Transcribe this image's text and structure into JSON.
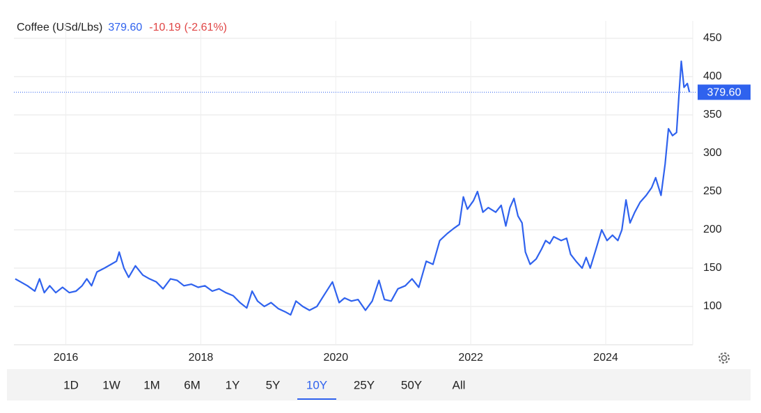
{
  "chart_data": {
    "type": "line",
    "title": "Coffee (USd/Lbs)",
    "last": {
      "value": 379.6,
      "label": "379.60"
    },
    "change": "-10.19",
    "change_pct": "(-2.61%)",
    "color": "#2f62ee",
    "grid": true,
    "xlim": [
      2015.23,
      2025.29
    ],
    "xticks": [
      2016,
      2018,
      2020,
      2022,
      2024
    ],
    "ylim": [
      50,
      463.6
    ],
    "yticks": [
      100,
      150,
      200,
      250,
      300,
      350,
      400,
      450
    ],
    "x": [
      2015.25,
      2015.33,
      2015.43,
      2015.54,
      2015.61,
      2015.68,
      2015.76,
      2015.85,
      2015.95,
      2016.05,
      2016.15,
      2016.24,
      2016.31,
      2016.38,
      2016.46,
      2016.57,
      2016.67,
      2016.75,
      2016.79,
      2016.86,
      2016.93,
      2017.03,
      2017.14,
      2017.24,
      2017.34,
      2017.44,
      2017.55,
      2017.65,
      2017.75,
      2017.86,
      2017.96,
      2018.06,
      2018.17,
      2018.27,
      2018.37,
      2018.48,
      2018.58,
      2018.68,
      2018.76,
      2018.84,
      2018.94,
      2019.04,
      2019.15,
      2019.25,
      2019.33,
      2019.41,
      2019.51,
      2019.61,
      2019.72,
      2019.82,
      2019.95,
      2020.05,
      2020.13,
      2020.23,
      2020.33,
      2020.44,
      2020.54,
      2020.64,
      2020.72,
      2020.82,
      2020.92,
      2021.03,
      2021.13,
      2021.23,
      2021.34,
      2021.44,
      2021.54,
      2021.65,
      2021.75,
      2021.83,
      2021.89,
      2021.95,
      2022.04,
      2022.1,
      2022.18,
      2022.26,
      2022.37,
      2022.45,
      2022.52,
      2022.58,
      2022.64,
      2022.7,
      2022.76,
      2022.81,
      2022.88,
      2022.97,
      2023.05,
      2023.11,
      2023.17,
      2023.23,
      2023.34,
      2023.42,
      2023.48,
      2023.56,
      2023.65,
      2023.71,
      2023.77,
      2023.85,
      2023.94,
      2024.02,
      2024.1,
      2024.18,
      2024.24,
      2024.3,
      2024.36,
      2024.43,
      2024.51,
      2024.6,
      2024.68,
      2024.74,
      2024.82,
      2024.88,
      2024.93,
      2024.99,
      2025.05,
      2025.09,
      2025.12,
      2025.16,
      2025.21,
      2025.24
    ],
    "series": [
      {
        "name": "Coffee",
        "color": "#2f62ee",
        "values": [
          136,
          132,
          127,
          120,
          136,
          118,
          127,
          118,
          125,
          118,
          120,
          127,
          136,
          127,
          145,
          150,
          155,
          159,
          171,
          150,
          138,
          153,
          141,
          136,
          132,
          123,
          136,
          134,
          127,
          129,
          125,
          127,
          120,
          123,
          118,
          114,
          105,
          98,
          120,
          107,
          100,
          105,
          97,
          93,
          89,
          107,
          100,
          95,
          100,
          114,
          132,
          105,
          111,
          107,
          109,
          95,
          107,
          134,
          109,
          107,
          123,
          127,
          136,
          125,
          159,
          155,
          186,
          195,
          202,
          207,
          243,
          227,
          238,
          250,
          223,
          229,
          223,
          232,
          205,
          229,
          241,
          218,
          209,
          171,
          155,
          162,
          175,
          186,
          182,
          191,
          186,
          189,
          168,
          159,
          150,
          164,
          150,
          173,
          200,
          186,
          193,
          186,
          200,
          239,
          209,
          223,
          236,
          245,
          255,
          268,
          245,
          286,
          332,
          323,
          327,
          382,
          420,
          386,
          391,
          379.6
        ]
      }
    ],
    "range_buttons": [
      "1D",
      "1W",
      "1M",
      "6M",
      "1Y",
      "5Y",
      "10Y",
      "25Y",
      "50Y",
      "All"
    ],
    "active_range": "10Y"
  }
}
